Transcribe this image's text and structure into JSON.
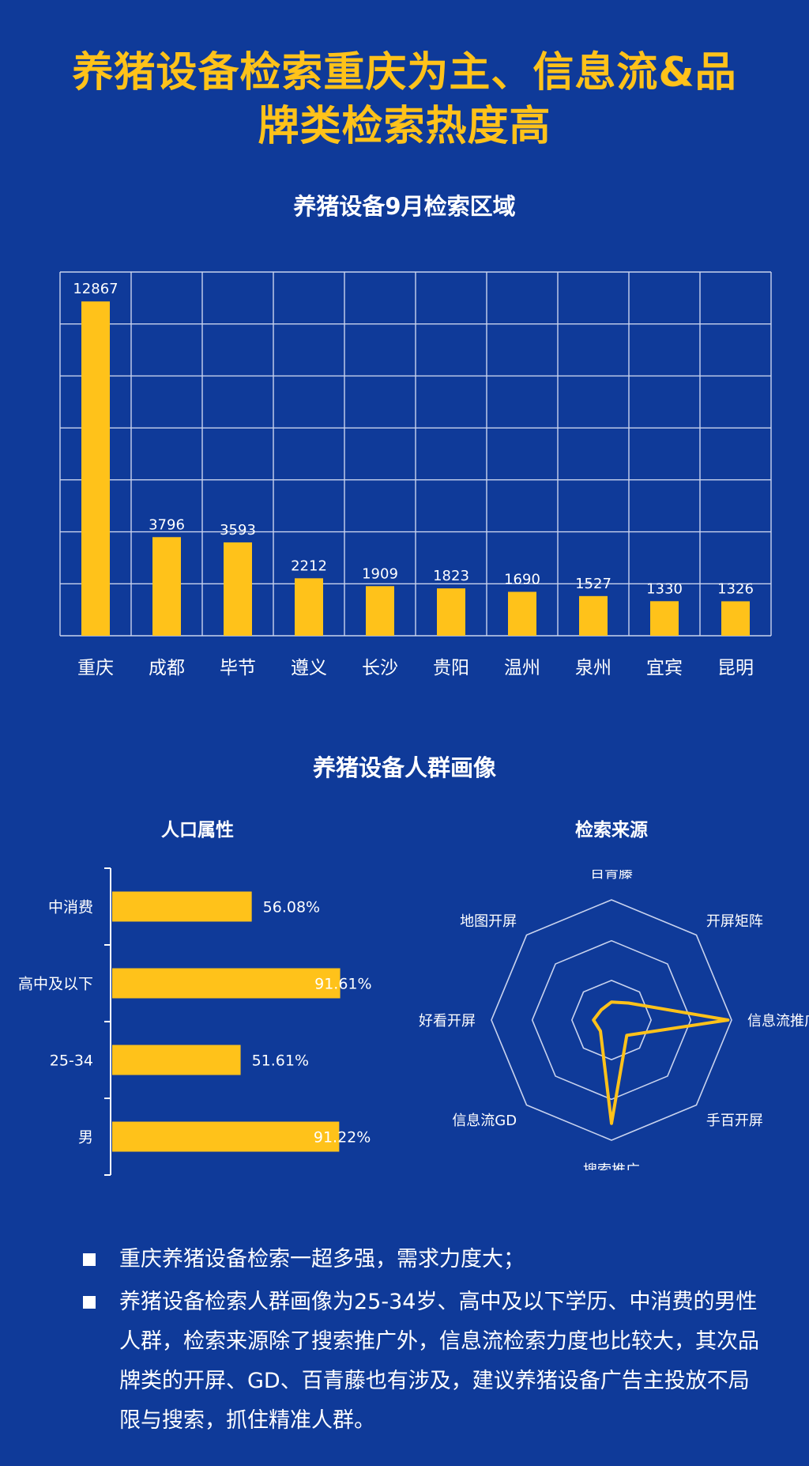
{
  "page": {
    "title_line1": "养猪设备检索重庆为主、信息流&品",
    "title_line2": "牌类检索热度高",
    "section1_title": "养猪设备9月检索区域",
    "section2_title": "养猪设备人群画像",
    "sub_left_title": "人口属性",
    "sub_right_title": "检索来源",
    "bullets": [
      "重庆养猪设备检索一超多强，需求力度大；",
      "养猪设备检索人群画像为25-34岁、高中及以下学历、中消费的男性人群，检索来源除了搜索推广外，信息流检索力度也比较大，其次品牌类的开屏、GD、百青藤也有涉及，建议养猪设备广告主投放不局限与搜索，抓住精准人群。"
    ]
  },
  "colors": {
    "background": "#0f3a99",
    "accent": "#ffc21a",
    "grid": "#c9d3ee",
    "text": "#ffffff"
  },
  "chart_data": [
    {
      "type": "bar",
      "title": "养猪设备9月检索区域",
      "categories": [
        "重庆",
        "成都",
        "毕节",
        "遵义",
        "长沙",
        "贵阳",
        "温州",
        "泉州",
        "宜宾",
        "昆明"
      ],
      "values": [
        12867,
        3796,
        3593,
        2212,
        1909,
        1823,
        1690,
        1527,
        1330,
        1326
      ],
      "ylim": [
        0,
        14000
      ],
      "grid": true
    },
    {
      "type": "bar",
      "orientation": "horizontal",
      "title": "人口属性",
      "categories": [
        "中消费",
        "高中及以下",
        "25-34",
        "男"
      ],
      "values": [
        56.08,
        91.61,
        51.61,
        91.22
      ],
      "labels": [
        "56.08%",
        "91.61%",
        "51.61%",
        "91.22%"
      ],
      "xlim": [
        0,
        100
      ]
    },
    {
      "type": "radar",
      "title": "检索来源",
      "categories": [
        "百青藤",
        "开屏矩阵",
        "信息流推广",
        "手百开屏",
        "搜索推广",
        "信息流GD",
        "好看开屏",
        "地图开屏"
      ],
      "values": [
        0.15,
        0.2,
        0.97,
        0.18,
        0.86,
        0.13,
        0.15,
        0.12
      ],
      "grid": true
    }
  ]
}
